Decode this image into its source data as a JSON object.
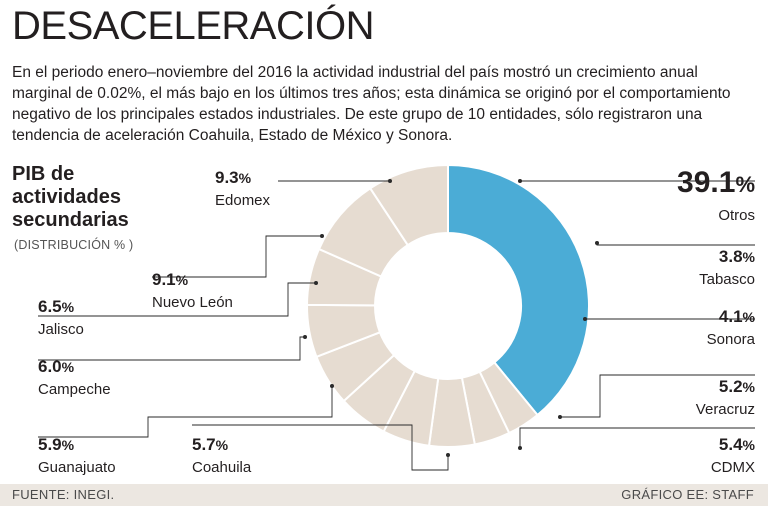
{
  "header": {
    "title": "DESACELERACIÓN",
    "lead": "En el periodo enero–noviembre del 2016 la actividad industrial del país mostró un crecimiento anual marginal de 0.02%, el más bajo en los últimos tres años; esta dinámica se originó por el comportamiento negativo de los principales estados industriales. De este grupo de 10 entidades, sólo registraron una tendencia de aceleración Coahuila, Estado de México y Sonora."
  },
  "chart_heading": {
    "title_lines": [
      "PIB de",
      "actividades",
      "secundarias"
    ],
    "subtitle": "(DISTRIBUCIÓN % )"
  },
  "chart_data": {
    "type": "pie",
    "variant": "donut",
    "unit": "%",
    "slices": [
      {
        "label": "Otros",
        "value": 39.1,
        "display": "39.1",
        "highlight": true
      },
      {
        "label": "Tabasco",
        "value": 3.8,
        "display": "3.8"
      },
      {
        "label": "Sonora",
        "value": 4.1,
        "display": "4.1"
      },
      {
        "label": "Veracruz",
        "value": 5.2,
        "display": "5.2"
      },
      {
        "label": "CDMX",
        "value": 5.4,
        "display": "5.4"
      },
      {
        "label": "Coahuila",
        "value": 5.7,
        "display": "5.7"
      },
      {
        "label": "Guanajuato",
        "value": 5.9,
        "display": "5.9"
      },
      {
        "label": "Campeche",
        "value": 6.0,
        "display": "6.0"
      },
      {
        "label": "Jalisco",
        "value": 6.5,
        "display": "6.5"
      },
      {
        "label": "Nuevo León",
        "value": 9.1,
        "display": "9.1"
      },
      {
        "label": "Edomex",
        "value": 9.3,
        "display": "9.3"
      }
    ],
    "colors": {
      "highlight": "#4bacd6",
      "other": "#e6dcd1",
      "divider": "#ffffff",
      "leader": "#2a2a2a"
    }
  },
  "footer": {
    "source": "FUENTE: INEGI.",
    "credit": "GRÁFICO EE: STAFF"
  }
}
